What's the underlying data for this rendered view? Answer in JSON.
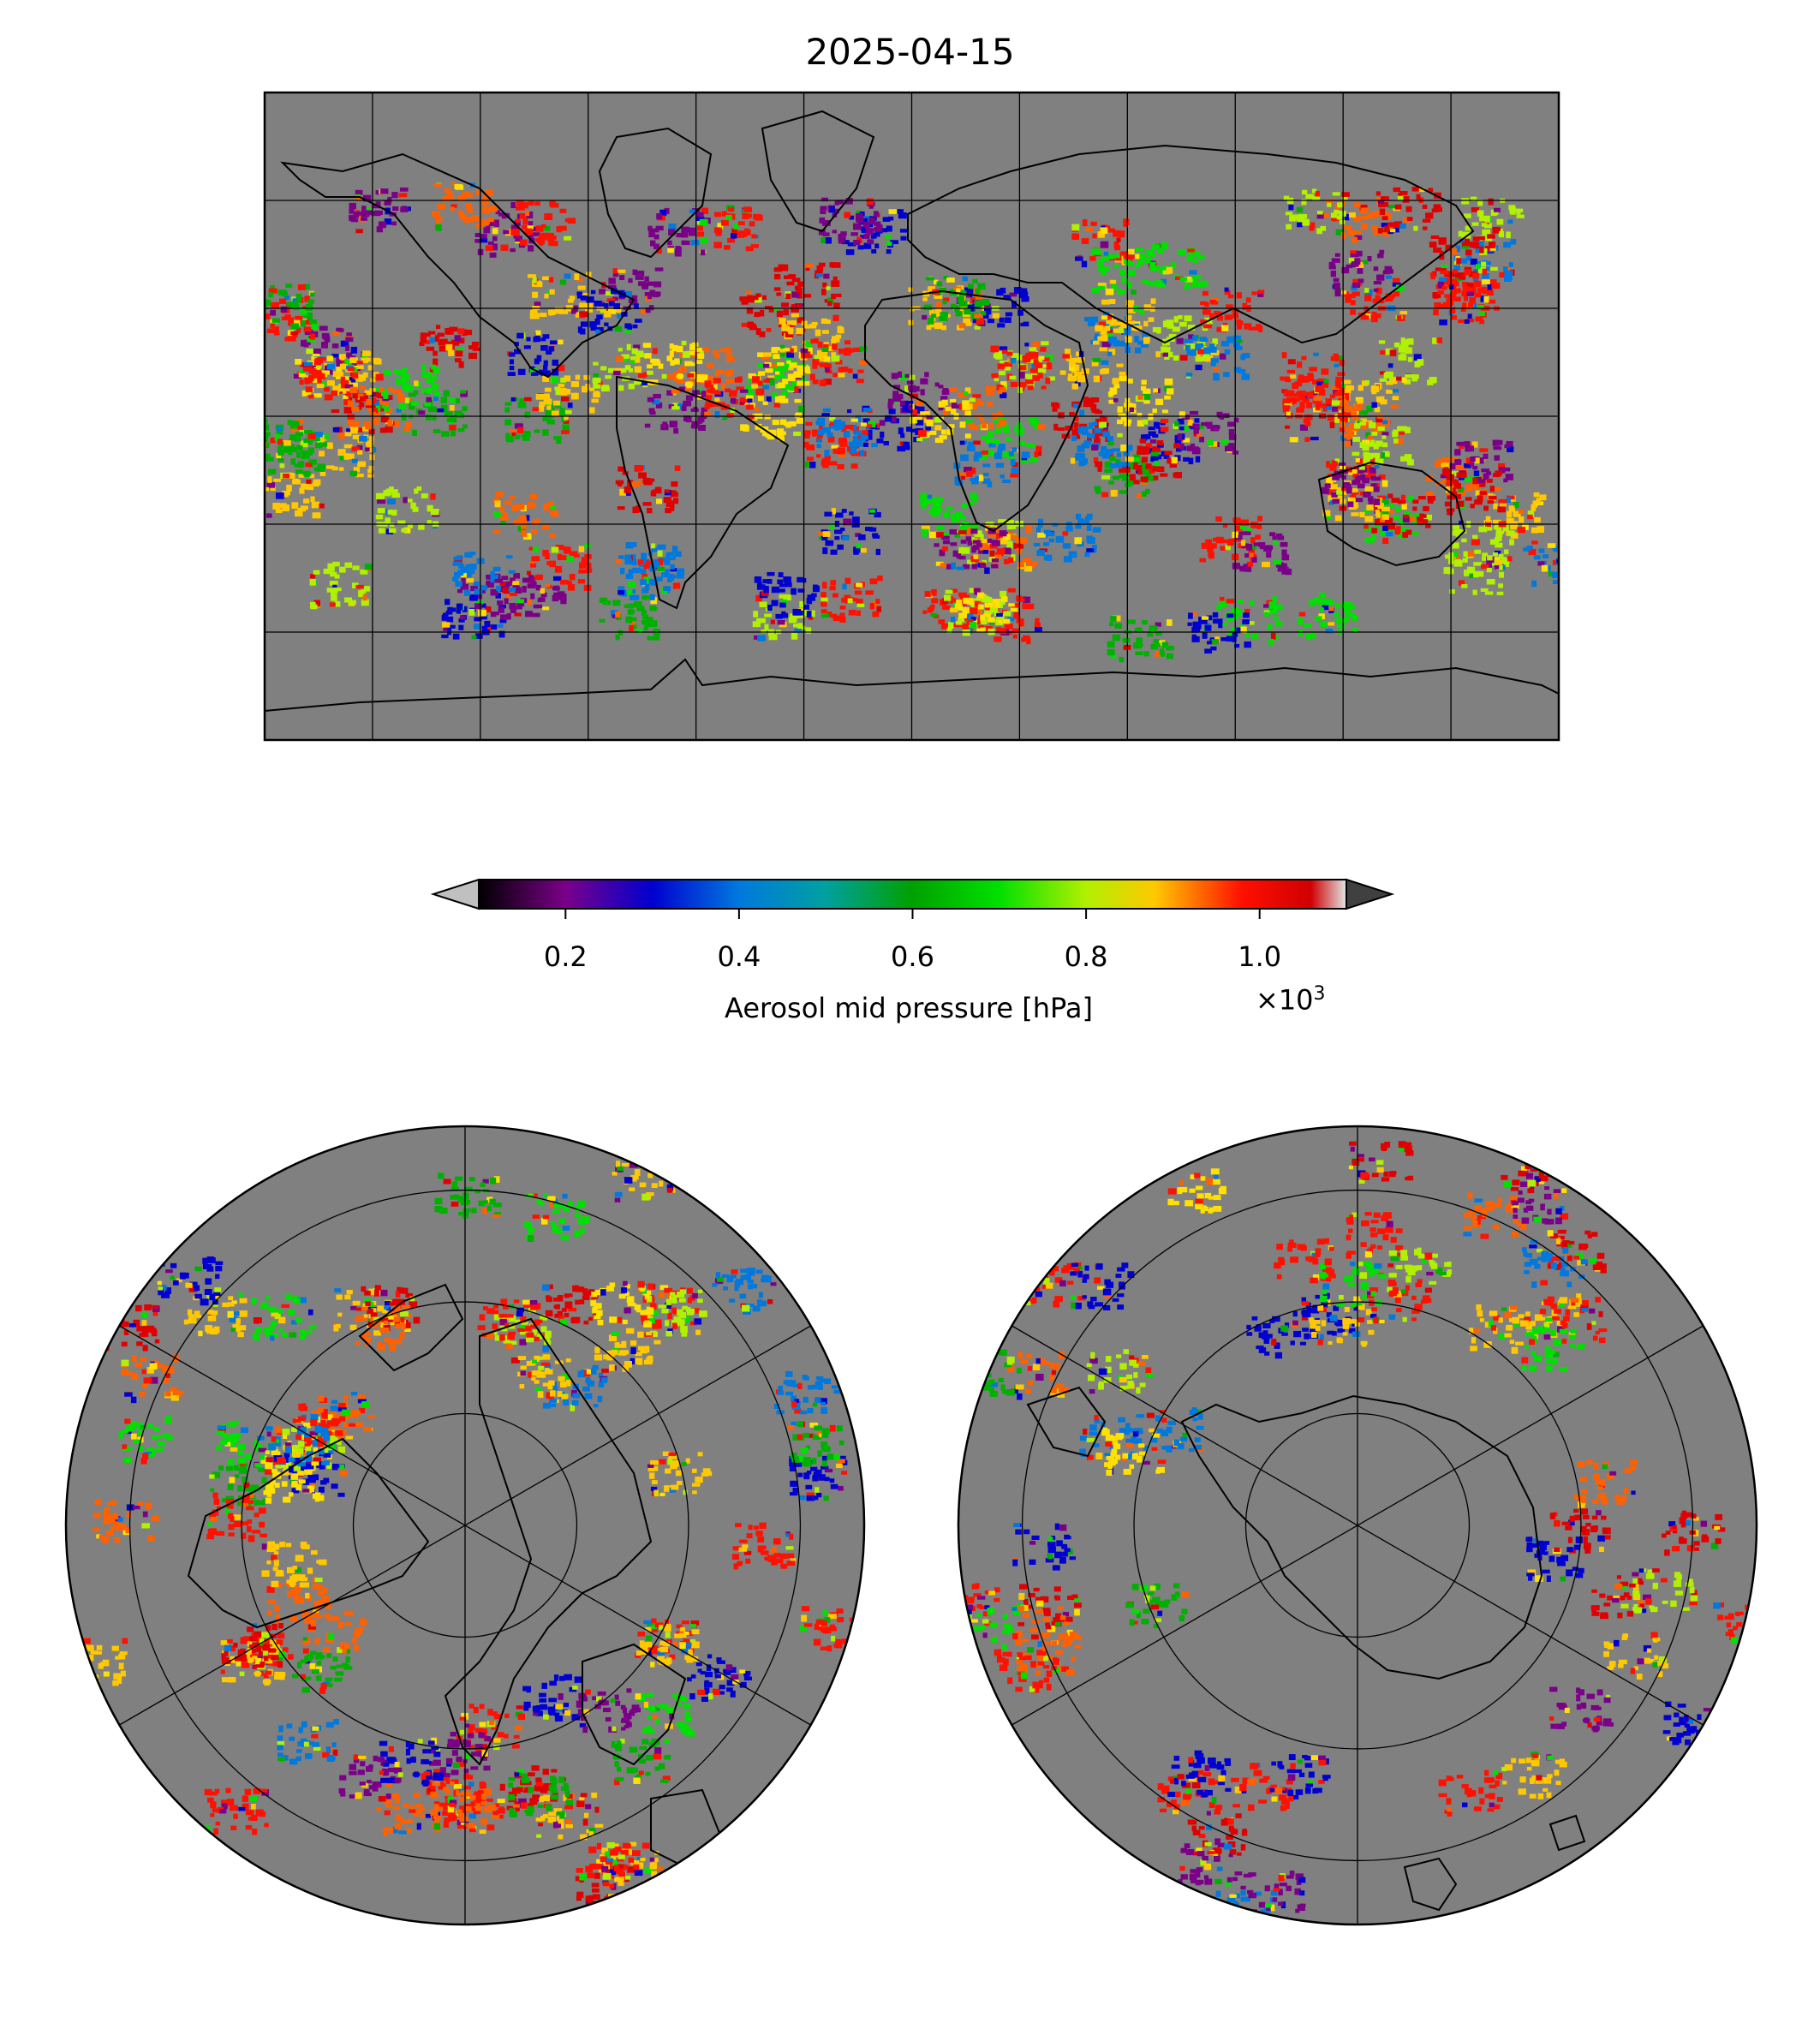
{
  "title": "2025-04-15",
  "colorbar": {
    "label": "Aerosol mid pressure [hPa]",
    "multiplier_base": "×10",
    "multiplier_exp": "3",
    "ticks": [
      {
        "value": 0.2,
        "label": "0.2"
      },
      {
        "value": 0.4,
        "label": "0.4"
      },
      {
        "value": 0.6,
        "label": "0.6"
      },
      {
        "value": 0.8,
        "label": "0.8"
      },
      {
        "value": 1.0,
        "label": "1.0"
      }
    ],
    "range": [
      0.1,
      1.1
    ],
    "colormap": "nipy_spectral",
    "under_color": "#c0c0c0",
    "over_color": "#404040",
    "missing_color": "#808080"
  },
  "maps": {
    "global": {
      "projection": "equirectangular",
      "meridians_deg": 30,
      "parallels_deg": 30
    },
    "north_polar": {
      "projection": "north polar stereographic"
    },
    "south_polar": {
      "projection": "south polar stereographic"
    }
  }
}
